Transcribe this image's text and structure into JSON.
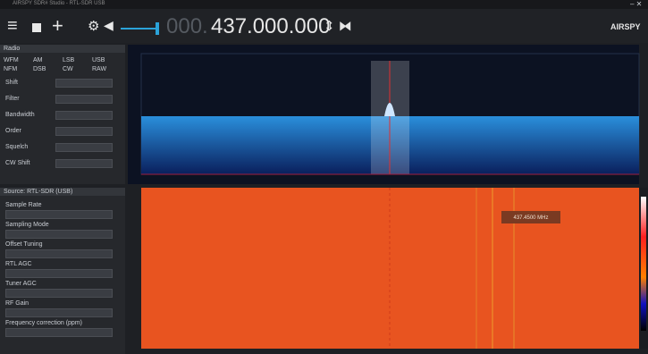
{
  "title_bar": {
    "title": "AIRSPY SDR# Studio - RTL-SDR USB"
  },
  "toolbar": {
    "frequency_dim": "000.",
    "frequency": "437.000.000",
    "logo": "AIRSPY"
  },
  "radio_panel": {
    "title": "Radio",
    "modes": [
      "WFM",
      "AM",
      "LSB",
      "USB",
      "NFM",
      "DSB",
      "CW",
      "RAW"
    ],
    "fields": [
      "Shift",
      "Filter",
      "Bandwidth",
      "Order",
      "Squelch",
      "CW Shift"
    ]
  },
  "source_panel": {
    "title": "Source: RTL-SDR (USB)",
    "fields": [
      "Sample Rate",
      "Sampling Mode",
      "Offset Tuning",
      "RTL AGC",
      "Tuner AGC",
      "RF Gain",
      "Frequency correction (ppm)"
    ]
  },
  "waterfall": {
    "tooltip": "437.4500 MHz"
  }
}
